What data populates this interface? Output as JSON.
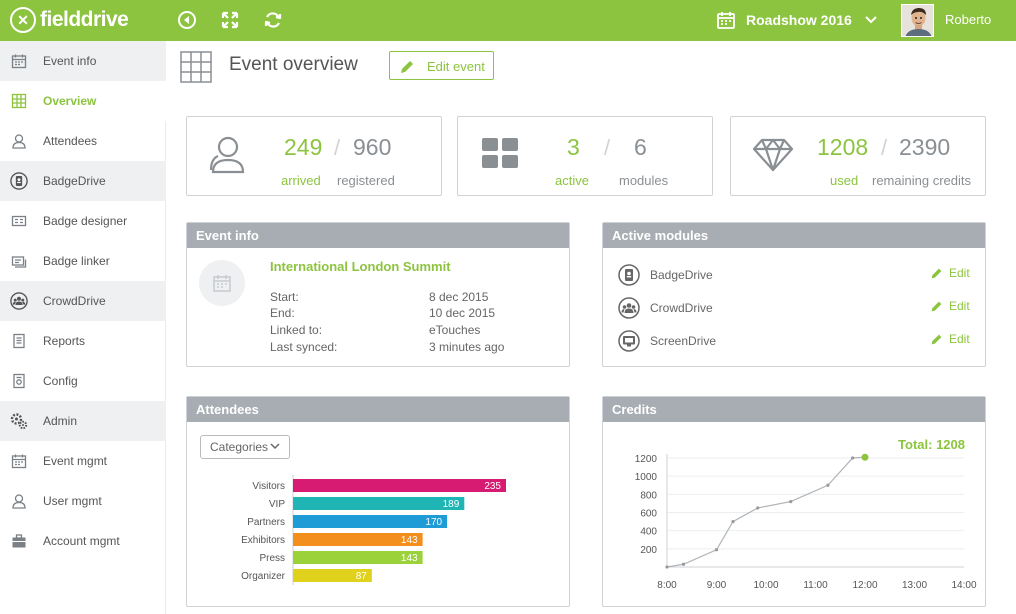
{
  "app": {
    "logo_text": "fielddrive"
  },
  "topbar": {
    "event_name": "Roadshow 2016",
    "user_name": "Roberto"
  },
  "sidebar": {
    "items": [
      {
        "label": "Event info",
        "icon": "calendar-icon",
        "group": true
      },
      {
        "label": "Overview",
        "icon": "grid-icon",
        "active": true
      },
      {
        "label": "Attendees",
        "icon": "person-icon"
      },
      {
        "label": "BadgeDrive",
        "icon": "badge-icon",
        "group": true
      },
      {
        "label": "Badge designer",
        "icon": "card-icon"
      },
      {
        "label": "Badge linker",
        "icon": "link-card-icon"
      },
      {
        "label": "CrowdDrive",
        "icon": "crowd-icon",
        "group": true
      },
      {
        "label": "Reports",
        "icon": "report-icon"
      },
      {
        "label": "Config",
        "icon": "config-icon"
      },
      {
        "label": "Admin",
        "icon": "gears-icon",
        "group": true
      },
      {
        "label": "Event mgmt",
        "icon": "calendar-icon"
      },
      {
        "label": "User mgmt",
        "icon": "person-icon"
      },
      {
        "label": "Account mgmt",
        "icon": "briefcase-icon"
      }
    ]
  },
  "page": {
    "title": "Event overview",
    "edit_label": "Edit event"
  },
  "stats": {
    "attendees": {
      "value_a": "249",
      "value_b": "960",
      "label_a": "arrived",
      "label_b": "registered"
    },
    "modules": {
      "value_a": "3",
      "value_b": "6",
      "label_a": "active",
      "label_b": "modules"
    },
    "credits": {
      "value_a": "1208",
      "value_b": "2390",
      "label_a": "used",
      "label_b": "remaining credits"
    },
    "slash": "/"
  },
  "event_info": {
    "heading": "Event info",
    "name": "International London Summit",
    "rows": [
      {
        "label": "Start:",
        "value": "8 dec 2015"
      },
      {
        "label": "End:",
        "value": "10 dec 2015"
      },
      {
        "label": "Linked to:",
        "value": "eTouches"
      },
      {
        "label": "Last synced:",
        "value": "3 minutes ago"
      }
    ]
  },
  "active_modules": {
    "heading": "Active modules",
    "edit_label": "Edit",
    "items": [
      {
        "name": "BadgeDrive",
        "icon": "badge-icon"
      },
      {
        "name": "CrowdDrive",
        "icon": "crowd-icon"
      },
      {
        "name": "ScreenDrive",
        "icon": "screen-icon"
      }
    ]
  },
  "attendees_panel": {
    "heading": "Attendees",
    "filter_value": "Categories"
  },
  "credits_panel": {
    "heading": "Credits",
    "total_label": "Total: 1208"
  },
  "colors": {
    "accent": "#8cc43f",
    "header_gray": "#a8adb3"
  },
  "chart_data": [
    {
      "type": "bar",
      "orientation": "horizontal",
      "categories": [
        "Visitors",
        "VIP",
        "Partners",
        "Exhibitors",
        "Press",
        "Organizer"
      ],
      "values": [
        235,
        189,
        170,
        143,
        143,
        87
      ],
      "colors": [
        "#d81b72",
        "#1fb5b5",
        "#1f9bd6",
        "#f3901d",
        "#9bd23a",
        "#e0d11c"
      ],
      "xlim": [
        0,
        235
      ]
    },
    {
      "type": "line",
      "x": [
        "8:00",
        "8:20",
        "9:00",
        "9:20",
        "9:50",
        "10:30",
        "11:15",
        "11:45",
        "12:00"
      ],
      "y": [
        0,
        30,
        190,
        500,
        650,
        720,
        900,
        1200,
        1208
      ],
      "x_ticks": [
        "8:00",
        "9:00",
        "10:00",
        "11:00",
        "12:00",
        "13:00",
        "14:00"
      ],
      "y_ticks": [
        200,
        400,
        600,
        800,
        1000,
        1200
      ],
      "xlim": [
        "8:00",
        "14:00"
      ],
      "ylim": [
        0,
        1200
      ],
      "grid": true,
      "color": "#b0b4b8",
      "last_point_color": "#8cc43f"
    }
  ]
}
